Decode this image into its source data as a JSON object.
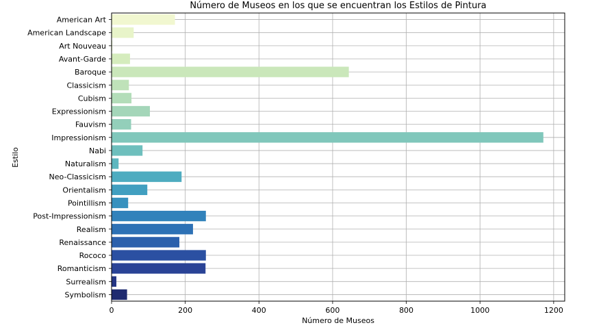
{
  "chart_data": {
    "type": "bar",
    "orientation": "horizontal",
    "title": "Número de Museos en los que se encuentran los Estilos de Pintura",
    "xlabel": "Número de Museos",
    "ylabel": "Estilo",
    "xlim": [
      0,
      1230
    ],
    "xticks": [
      0,
      200,
      400,
      600,
      800,
      1000,
      1200
    ],
    "grid": true,
    "categories": [
      "American Art",
      "American Landscape",
      "Art Nouveau",
      "Avant-Garde",
      "Baroque",
      "Classicism",
      "Cubism",
      "Expressionism",
      "Fauvism",
      "Impressionism",
      "Nabi",
      "Naturalism",
      "Neo-Classicism",
      "Orientalism",
      "Pointillism",
      "Post-Impressionism",
      "Realism",
      "Renaissance",
      "Rococo",
      "Romanticism",
      "Surrealism",
      "Symbolism"
    ],
    "values": [
      172,
      60,
      2,
      50,
      644,
      47,
      54,
      104,
      53,
      1172,
      84,
      19,
      190,
      97,
      45,
      256,
      221,
      184,
      256,
      255,
      13,
      42
    ],
    "colors": [
      "#f1f7d0",
      "#e8f4c9",
      "#def0c2",
      "#d5ecbd",
      "#cae7ba",
      "#bfe2b9",
      "#b3ddb9",
      "#a4d6b9",
      "#93cfba",
      "#80c7bb",
      "#6ebfbd",
      "#5db7bf",
      "#4eacc0",
      "#419fc0",
      "#3791be",
      "#3182bb",
      "#2d71b5",
      "#2b60ac",
      "#2b50a2",
      "#2a4396",
      "#253685",
      "#1f2b70"
    ]
  }
}
